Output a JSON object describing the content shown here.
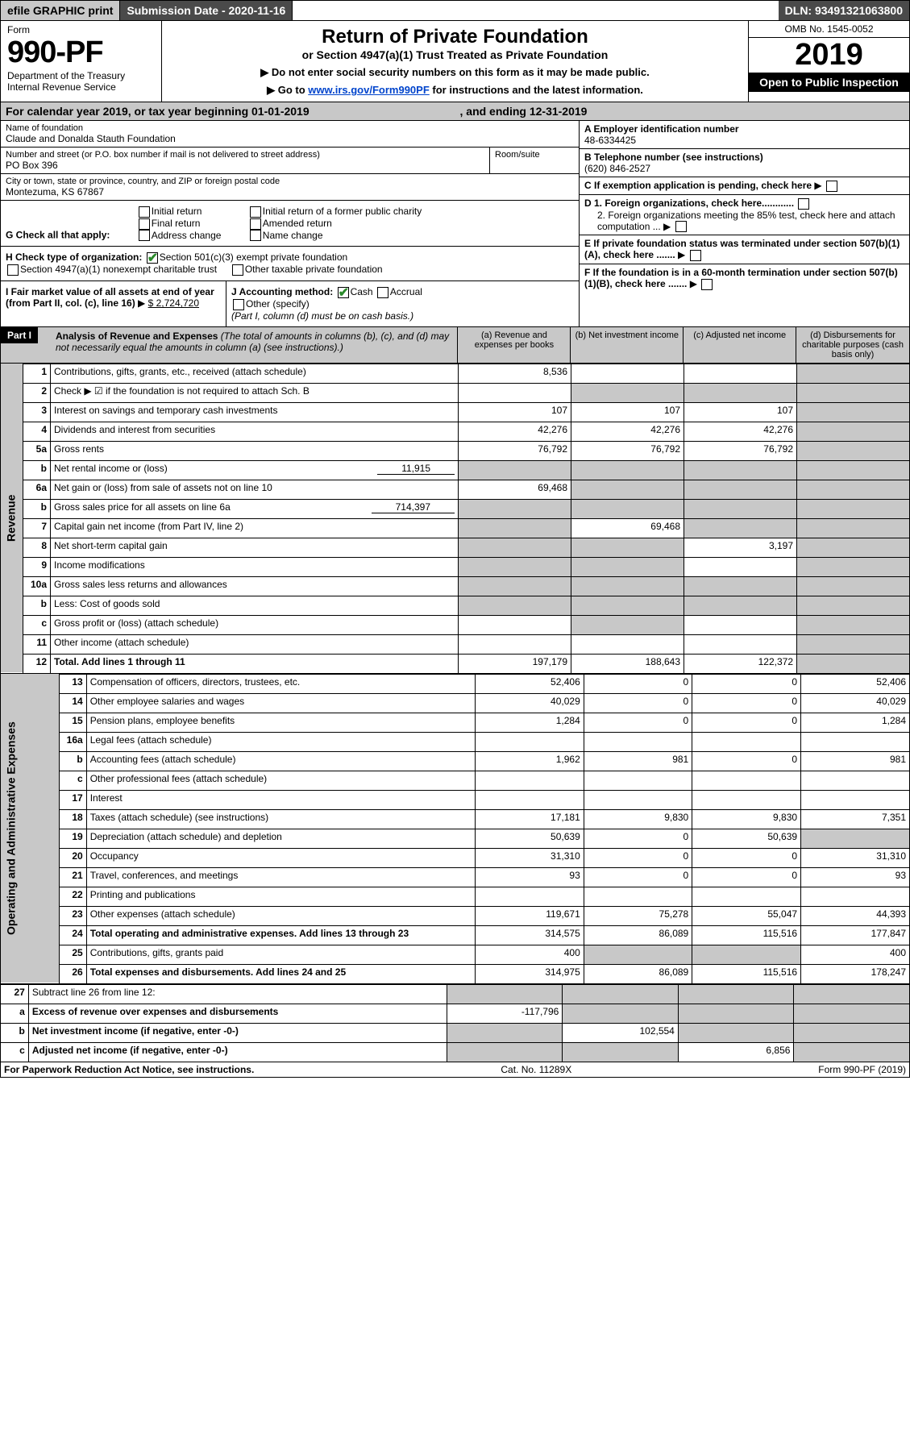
{
  "header": {
    "efile": "efile GRAPHIC print",
    "submission_label": "Submission Date - 2020-11-16",
    "dln": "DLN: 93491321063800"
  },
  "form": {
    "form_word": "Form",
    "number": "990-PF",
    "dept": "Department of the Treasury",
    "irs": "Internal Revenue Service",
    "title": "Return of Private Foundation",
    "subtitle": "or Section 4947(a)(1) Trust Treated as Private Foundation",
    "warn1": "Do not enter social security numbers on this form as it may be made public.",
    "warn2_a": "Go to ",
    "warn2_link": "www.irs.gov/Form990PF",
    "warn2_b": " for instructions and the latest information.",
    "omb": "OMB No. 1545-0052",
    "year": "2019",
    "open": "Open to Public Inspection"
  },
  "taxyear": {
    "label_a": "For calendar year 2019, or tax year beginning 01-01-2019",
    "label_b": ", and ending 12-31-2019"
  },
  "org": {
    "name_label": "Name of foundation",
    "name": "Claude and Donalda Stauth Foundation",
    "ein_label": "A Employer identification number",
    "ein": "48-6334425",
    "addr_label": "Number and street (or P.O. box number if mail is not delivered to street address)",
    "addr": "PO Box 396",
    "room_label": "Room/suite",
    "tel_label": "B Telephone number (see instructions)",
    "tel": "(620) 846-2527",
    "city_label": "City or town, state or province, country, and ZIP or foreign postal code",
    "city": "Montezuma, KS  67867",
    "c_label": "C If exemption application is pending, check here"
  },
  "checks_g": {
    "label": "G Check all that apply:",
    "o1": "Initial return",
    "o2": "Final return",
    "o3": "Address change",
    "o4": "Initial return of a former public charity",
    "o5": "Amended return",
    "o6": "Name change"
  },
  "d_items": {
    "d1": "D 1. Foreign organizations, check here............",
    "d2": "2. Foreign organizations meeting the 85% test, check here and attach computation ...",
    "e": "E  If private foundation status was terminated under section 507(b)(1)(A), check here .......",
    "f": "F  If the foundation is in a 60-month termination under section 507(b)(1)(B), check here ......."
  },
  "checks_h": {
    "label": "H Check type of organization:",
    "o1": "Section 501(c)(3) exempt private foundation",
    "o2": "Section 4947(a)(1) nonexempt charitable trust",
    "o3": "Other taxable private foundation"
  },
  "line_i": {
    "label": "I Fair market value of all assets at end of year (from Part II, col. (c), line 16) ",
    "value": "$  2,724,720"
  },
  "line_j": {
    "label": "J Accounting method:",
    "o1": "Cash",
    "o2": "Accrual",
    "o3": "Other (specify)",
    "note": "(Part I, column (d) must be on cash basis.)"
  },
  "part1": {
    "tag": "Part I",
    "title": "Analysis of Revenue and Expenses ",
    "title_note": "(The total of amounts in columns (b), (c), and (d) may not necessarily equal the amounts in column (a) (see instructions).)",
    "cols": {
      "a": "(a)   Revenue and expenses per books",
      "b": "(b)   Net investment income",
      "c": "(c)   Adjusted net income",
      "d": "(d)   Disbursements for charitable purposes (cash basis only)"
    }
  },
  "side": {
    "rev": "Revenue",
    "exp": "Operating and Administrative Expenses"
  },
  "rev": [
    {
      "ln": "1",
      "desc": "Contributions, gifts, grants, etc., received (attach schedule)",
      "a": "8,536",
      "b": "",
      "c": "",
      "d": "",
      "shade_d": true
    },
    {
      "ln": "2",
      "desc": "Check ▶ ☑ if the foundation is not required to attach Sch. B",
      "a": "",
      "b": "",
      "c": "",
      "d": "",
      "shade_bcd": true
    },
    {
      "ln": "3",
      "desc": "Interest on savings and temporary cash investments",
      "a": "107",
      "b": "107",
      "c": "107",
      "d": "",
      "shade_d": true
    },
    {
      "ln": "4",
      "desc": "Dividends and interest from securities",
      "a": "42,276",
      "b": "42,276",
      "c": "42,276",
      "d": "",
      "shade_d": true
    },
    {
      "ln": "5a",
      "desc": "Gross rents",
      "a": "76,792",
      "b": "76,792",
      "c": "76,792",
      "d": "",
      "shade_d": true
    },
    {
      "ln": "b",
      "desc": "Net rental income or (loss)",
      "inline": "11,915",
      "a": "",
      "b": "",
      "c": "",
      "d": "",
      "shade_abcd": true
    },
    {
      "ln": "6a",
      "desc": "Net gain or (loss) from sale of assets not on line 10",
      "a": "69,468",
      "b": "",
      "c": "",
      "d": "",
      "shade_bcd": true
    },
    {
      "ln": "b",
      "desc": "Gross sales price for all assets on line 6a",
      "inline": "714,397",
      "a": "",
      "b": "",
      "c": "",
      "d": "",
      "shade_abcd": true
    },
    {
      "ln": "7",
      "desc": "Capital gain net income (from Part IV, line 2)",
      "a": "",
      "b": "69,468",
      "c": "",
      "d": "",
      "shade_acd": true
    },
    {
      "ln": "8",
      "desc": "Net short-term capital gain",
      "a": "",
      "b": "",
      "c": "3,197",
      "d": "",
      "shade_abd": true
    },
    {
      "ln": "9",
      "desc": "Income modifications",
      "a": "",
      "b": "",
      "c": "",
      "d": "",
      "shade_abd": true
    },
    {
      "ln": "10a",
      "desc": "Gross sales less returns and allowances",
      "a": "",
      "b": "",
      "c": "",
      "d": "",
      "shade_abcd": true
    },
    {
      "ln": "b",
      "desc": "Less: Cost of goods sold",
      "a": "",
      "b": "",
      "c": "",
      "d": "",
      "shade_abcd": true
    },
    {
      "ln": "c",
      "desc": "Gross profit or (loss) (attach schedule)",
      "a": "",
      "b": "",
      "c": "",
      "d": "",
      "shade_bd": true
    },
    {
      "ln": "11",
      "desc": "Other income (attach schedule)",
      "a": "",
      "b": "",
      "c": "",
      "d": "",
      "shade_d": true
    },
    {
      "ln": "12",
      "desc": "Total. Add lines 1 through 11",
      "bold": true,
      "a": "197,179",
      "b": "188,643",
      "c": "122,372",
      "d": "",
      "shade_d": true
    }
  ],
  "exp": [
    {
      "ln": "13",
      "desc": "Compensation of officers, directors, trustees, etc.",
      "a": "52,406",
      "b": "0",
      "c": "0",
      "d": "52,406"
    },
    {
      "ln": "14",
      "desc": "Other employee salaries and wages",
      "a": "40,029",
      "b": "0",
      "c": "0",
      "d": "40,029"
    },
    {
      "ln": "15",
      "desc": "Pension plans, employee benefits",
      "a": "1,284",
      "b": "0",
      "c": "0",
      "d": "1,284"
    },
    {
      "ln": "16a",
      "desc": "Legal fees (attach schedule)",
      "a": "",
      "b": "",
      "c": "",
      "d": ""
    },
    {
      "ln": "b",
      "desc": "Accounting fees (attach schedule)",
      "a": "1,962",
      "b": "981",
      "c": "0",
      "d": "981"
    },
    {
      "ln": "c",
      "desc": "Other professional fees (attach schedule)",
      "a": "",
      "b": "",
      "c": "",
      "d": ""
    },
    {
      "ln": "17",
      "desc": "Interest",
      "a": "",
      "b": "",
      "c": "",
      "d": ""
    },
    {
      "ln": "18",
      "desc": "Taxes (attach schedule) (see instructions)",
      "a": "17,181",
      "b": "9,830",
      "c": "9,830",
      "d": "7,351"
    },
    {
      "ln": "19",
      "desc": "Depreciation (attach schedule) and depletion",
      "a": "50,639",
      "b": "0",
      "c": "50,639",
      "d": "",
      "shade_d": true
    },
    {
      "ln": "20",
      "desc": "Occupancy",
      "a": "31,310",
      "b": "0",
      "c": "0",
      "d": "31,310"
    },
    {
      "ln": "21",
      "desc": "Travel, conferences, and meetings",
      "a": "93",
      "b": "0",
      "c": "0",
      "d": "93"
    },
    {
      "ln": "22",
      "desc": "Printing and publications",
      "a": "",
      "b": "",
      "c": "",
      "d": ""
    },
    {
      "ln": "23",
      "desc": "Other expenses (attach schedule)",
      "a": "119,671",
      "b": "75,278",
      "c": "55,047",
      "d": "44,393"
    },
    {
      "ln": "24",
      "desc": "Total operating and administrative expenses. Add lines 13 through 23",
      "bold": true,
      "a": "314,575",
      "b": "86,089",
      "c": "115,516",
      "d": "177,847"
    },
    {
      "ln": "25",
      "desc": "Contributions, gifts, grants paid",
      "a": "400",
      "b": "",
      "c": "",
      "d": "400",
      "shade_bc": true
    },
    {
      "ln": "26",
      "desc": "Total expenses and disbursements. Add lines 24 and 25",
      "bold": true,
      "a": "314,975",
      "b": "86,089",
      "c": "115,516",
      "d": "178,247"
    }
  ],
  "end": [
    {
      "ln": "27",
      "desc": "Subtract line 26 from line 12:",
      "a": "",
      "b": "",
      "c": "",
      "d": "",
      "shade_abcd": true
    },
    {
      "ln": "a",
      "desc": "Excess of revenue over expenses and disbursements",
      "bold": true,
      "a": "-117,796",
      "b": "",
      "c": "",
      "d": "",
      "shade_bcd": true
    },
    {
      "ln": "b",
      "desc": "Net investment income (if negative, enter -0-)",
      "bold": true,
      "a": "",
      "b": "102,554",
      "c": "",
      "d": "",
      "shade_acd": true
    },
    {
      "ln": "c",
      "desc": "Adjusted net income (if negative, enter -0-)",
      "bold": true,
      "a": "",
      "b": "",
      "c": "6,856",
      "d": "",
      "shade_abd": true
    }
  ],
  "footer": {
    "left": "For Paperwork Reduction Act Notice, see instructions.",
    "mid": "Cat. No. 11289X",
    "right": "Form 990-PF (2019)"
  }
}
